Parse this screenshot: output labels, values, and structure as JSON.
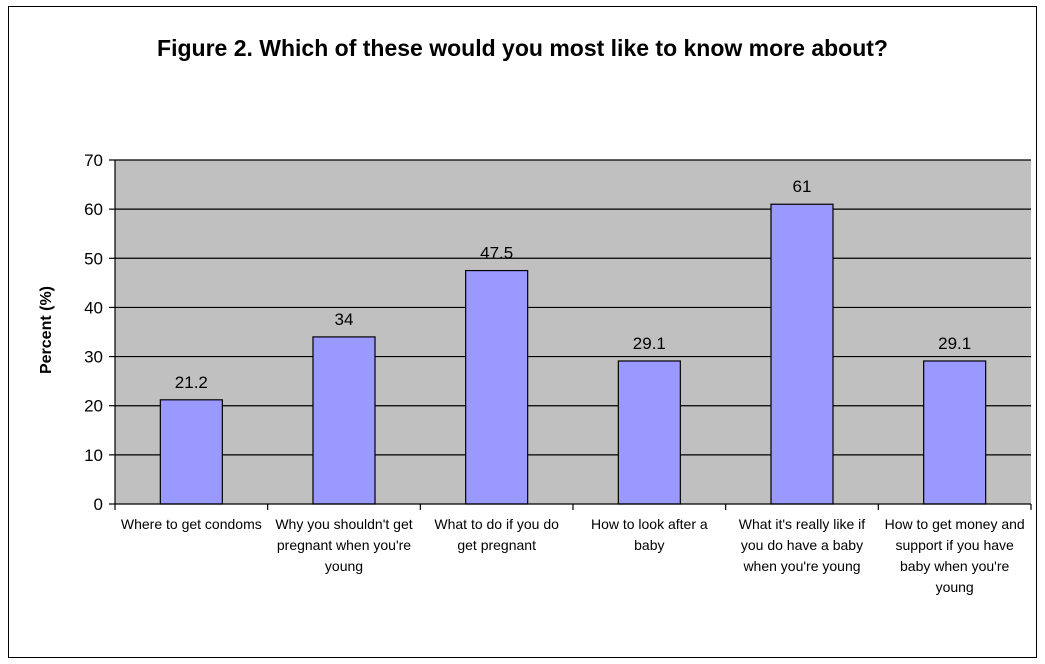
{
  "chart_data": {
    "type": "bar",
    "title": "Figure 2. Which of these would you most like to know more about?",
    "xlabel": "",
    "ylabel": "Percent (%)",
    "ylim": [
      0,
      70
    ],
    "yticks": [
      "0",
      "10",
      "20",
      "30",
      "40",
      "50",
      "60",
      "70"
    ],
    "categories": [
      "Where to get condoms",
      "Why you shouldn't get pregnant when you're young",
      "What to do if you do get pregnant",
      "How to look after a baby",
      "What it's really like if you do have a baby when you're young",
      "How to get money and support if you have baby when you're young"
    ],
    "values": [
      21.2,
      34,
      47.5,
      29.1,
      61,
      29.1
    ],
    "value_labels": [
      "21.2",
      "34",
      "47.5",
      "29.1",
      "61",
      "29.1"
    ],
    "grid": true,
    "legend": "none",
    "colors": {
      "bar": "#9999ff",
      "plot_background": "#c0c0c0",
      "gridline": "#000000"
    }
  }
}
